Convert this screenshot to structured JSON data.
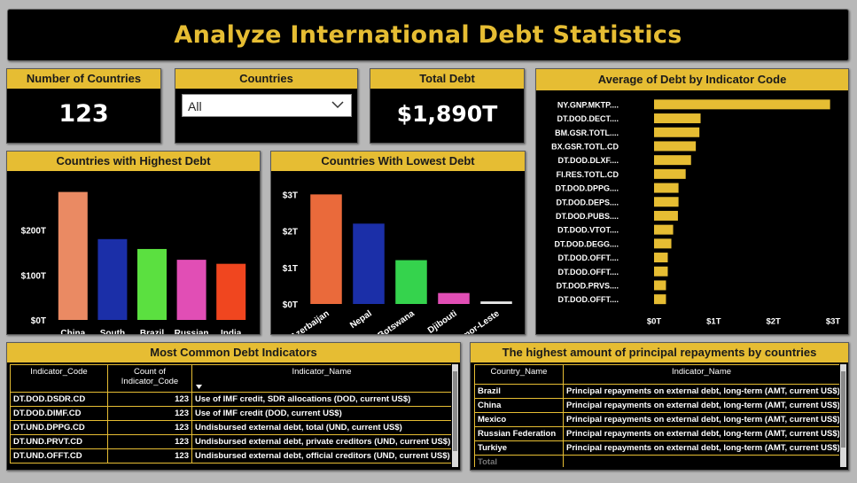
{
  "title": "Analyze International Debt Statistics",
  "kpis": {
    "countries": {
      "label": "Number of Countries",
      "value": "123"
    },
    "slicer": {
      "label": "Countries",
      "value": "All"
    },
    "total_debt": {
      "label": "Total Debt",
      "value": "$1,890T"
    }
  },
  "colors": {
    "accent": "#e6bd33",
    "background": "#b8b8b8",
    "panel": "#000000"
  },
  "icons": {
    "dropdown": "chevron-down-icon",
    "sort": "sort-desc-icon"
  },
  "chart_data": [
    {
      "type": "bar",
      "title": "Countries with Highest Debt",
      "categories": [
        "China",
        "South Asia",
        "Brazil",
        "Russian Feder...",
        "India"
      ],
      "values": [
        285,
        180,
        158,
        134,
        125
      ],
      "colors": [
        "#ea8a63",
        "#1b2fa8",
        "#5be040",
        "#e14eb5",
        "#f0461f"
      ],
      "ytick_labels": [
        "$0T",
        "$100T",
        "$200T"
      ],
      "yticks": [
        0,
        100,
        200
      ],
      "ylim": [
        0,
        300
      ],
      "grid": false
    },
    {
      "type": "bar",
      "title": "Countries With Lowest Debt",
      "categories": [
        "Azerbaijan",
        "Nepal",
        "Botswana",
        "Djibouti",
        "Timor-Leste"
      ],
      "values": [
        3.0,
        2.2,
        1.2,
        0.3,
        0.07
      ],
      "colors": [
        "#ea6a3b",
        "#1b2fa8",
        "#35d34d",
        "#e14eb5",
        "#e6e6e6"
      ],
      "ytick_labels": [
        "$0T",
        "$1T",
        "$2T",
        "$3T"
      ],
      "yticks": [
        0,
        1,
        2,
        3
      ],
      "ylim": [
        0,
        3.3
      ],
      "grid": false
    },
    {
      "type": "bar",
      "orientation": "horizontal",
      "title": "Average of Debt by Indicator Code",
      "categories": [
        "NY.GNP.MKTP....",
        "DT.DOD.DECT....",
        "BM.GSR.TOTL....",
        "BX.GSR.TOTL.CD",
        "DT.DOD.DLXF....",
        "FI.RES.TOTL.CD",
        "DT.DOD.DPPG....",
        "DT.DOD.DEPS....",
        "DT.DOD.PUBS....",
        "DT.DOD.VTOT....",
        "DT.DOD.DEGG....",
        "DT.DOD.OFFT....",
        "DT.DOD.OFFT....",
        "DT.DOD.PRVS....",
        "DT.DOD.OFFT...."
      ],
      "values": [
        2.95,
        0.78,
        0.76,
        0.7,
        0.62,
        0.53,
        0.41,
        0.41,
        0.4,
        0.32,
        0.29,
        0.23,
        0.23,
        0.2,
        0.2
      ],
      "xtick_labels": [
        "$0T",
        "$1T",
        "$2T",
        "$3T"
      ],
      "xticks": [
        0,
        1,
        2,
        3
      ],
      "xlim": [
        0,
        3
      ],
      "color": "#e6bd33",
      "grid": false
    }
  ],
  "common_indicators": {
    "title": "Most Common Debt Indicators",
    "columns": [
      "Indicator_Code",
      "Count of Indicator_Code",
      "Indicator_Name"
    ],
    "rows": [
      [
        "DT.DOD.DSDR.CD",
        "123",
        "Use of IMF credit, SDR allocations (DOD, current US$)"
      ],
      [
        "DT.DOD.DIMF.CD",
        "123",
        "Use of IMF credit (DOD, current US$)"
      ],
      [
        "DT.UND.DPPG.CD",
        "123",
        "Undisbursed external debt, total (UND, current US$)"
      ],
      [
        "DT.UND.PRVT.CD",
        "123",
        "Undisbursed external debt, private creditors (UND, current US$)"
      ],
      [
        "DT.UND.OFFT.CD",
        "123",
        "Undisbursed external debt, official creditors (UND, current US$)"
      ]
    ]
  },
  "repayments": {
    "title": "The highest amount of principal repayments by countries",
    "columns": [
      "Country_Name",
      "Indicator_Name"
    ],
    "rows": [
      [
        "Brazil",
        "Principal repayments on external debt, long-term (AMT, current US$)"
      ],
      [
        "China",
        "Principal repayments on external debt, long-term (AMT, current US$)"
      ],
      [
        "Mexico",
        "Principal repayments on external debt, long-term (AMT, current US$)"
      ],
      [
        "Russian Federation",
        "Principal repayments on external debt, long-term (AMT, current US$)"
      ],
      [
        "Turkiye",
        "Principal repayments on external debt, long-term (AMT, current US$)"
      ]
    ],
    "total_label": "Total"
  }
}
